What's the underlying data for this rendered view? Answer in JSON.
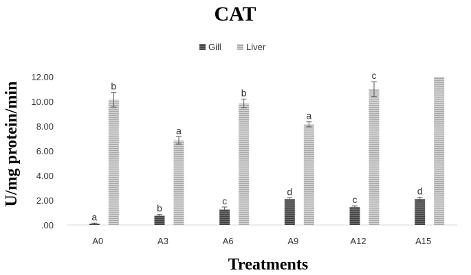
{
  "chart_data": {
    "type": "bar",
    "title": "CAT",
    "xlabel": "Treatments",
    "ylabel": "U/mg protein/min",
    "categories": [
      "A0",
      "A3",
      "A6",
      "A9",
      "A12",
      "A15"
    ],
    "ylim": [
      0,
      12
    ],
    "yticks": [
      0,
      2,
      4,
      6,
      8,
      10,
      12
    ],
    "ytick_labels": [
      ".00",
      "2.00",
      "4.00",
      "6.00",
      "8.00",
      "10.00",
      "12.00"
    ],
    "grid": false,
    "legend_position": "top-center",
    "series": [
      {
        "name": "Gill",
        "color": "#5a5a5a",
        "values": [
          0.1,
          0.75,
          1.25,
          2.1,
          1.45,
          2.1
        ],
        "errors": [
          0.05,
          0.1,
          0.2,
          0.1,
          0.1,
          0.15
        ],
        "letters": [
          "a",
          "b",
          "c",
          "d",
          "c",
          "d"
        ]
      },
      {
        "name": "Liver",
        "color": "#c0c0c0",
        "values": [
          10.15,
          6.85,
          9.85,
          8.15,
          11.0,
          12.0
        ],
        "errors": [
          0.6,
          0.3,
          0.35,
          0.2,
          0.6,
          0
        ],
        "letters": [
          "b",
          "a",
          "b",
          "a",
          "c",
          ""
        ]
      }
    ]
  }
}
